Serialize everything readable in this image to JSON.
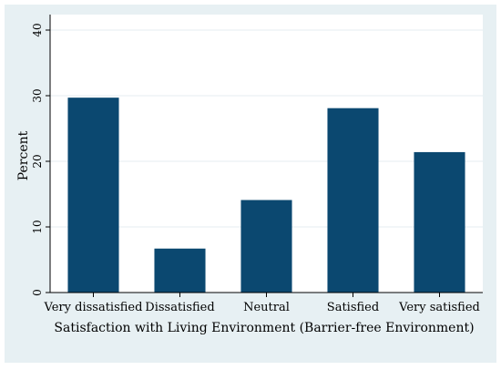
{
  "chart_data": {
    "type": "bar",
    "categories": [
      "Very dissatisfied",
      "Dissatisfied",
      "Neutral",
      "Satisfied",
      "Very satisfied"
    ],
    "values": [
      29.7,
      6.7,
      14.1,
      28.1,
      21.4
    ],
    "xlabel": "Satisfaction with Living Environment (Barrier-free Environment)",
    "ylabel": "Percent",
    "ylim": [
      0,
      40
    ],
    "yticks": [
      0,
      10,
      20,
      30,
      40
    ],
    "grid": true,
    "colors": {
      "bar": "#0b4870",
      "outer_background": "#e7f0f3",
      "plot_background": "#ffffff",
      "grid": "#e6eef2",
      "axis": "#000000"
    }
  }
}
